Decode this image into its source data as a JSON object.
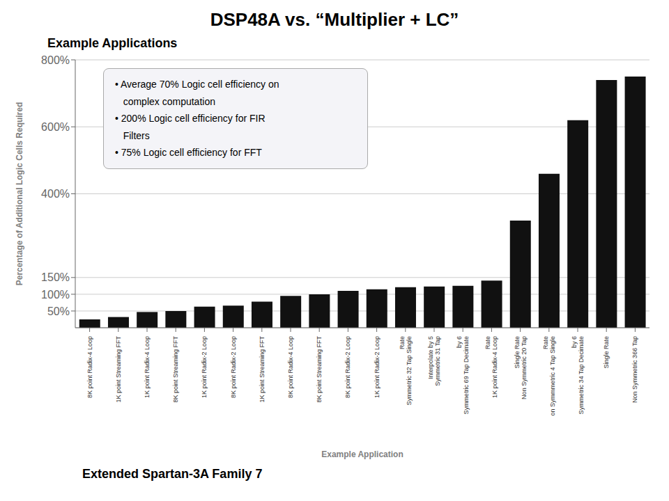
{
  "chart_data": {
    "type": "bar",
    "title": "DSP48A vs.  “Multiplier + LC”",
    "subtitle": "Example Applications",
    "footer": "Extended Spartan-3A Family   7",
    "x_label": "Example Application",
    "y_label": "Percentage  of Additional Logic Cells Required",
    "categories": [
      "8K point Radix-4 Loop",
      "1K point Streaming FFT",
      "1K point Radix-4 Loop",
      "8K point Streaming FFT",
      "1K point Radix-2 Loop",
      "8K point Radix-2 Loop",
      "1K point Streaming FFT",
      "8K point Radix-4 Loop",
      "8K point Streaming FFT",
      "8K point Radix-2 Loop",
      "1K point Radix-2 Loop",
      "Rate\nSymmetric 32 Tap Single",
      "Interpolate by 5\nSymmetric 31 Tap",
      "by 6\nSymmetric 69 Tap Decimate",
      "Rate\n1K point Radix-4 Loop",
      "Single Rate\nNon Symmetric 20 Tap",
      "Rate\non Symmmetric 4 Tap Single",
      "by 6\nSymmetric 34 Tap Decimate",
      "Single Rate",
      "Non Symmetric 366 Tap"
    ],
    "values": [
      25,
      32,
      47,
      50,
      63,
      66,
      78,
      95,
      100,
      110,
      115,
      121,
      123,
      125,
      141,
      320,
      460,
      620,
      740,
      750
    ],
    "color": "#111111",
    "ylim": [
      0,
      800
    ],
    "yticks": [
      {
        "value": 50,
        "label": "50%"
      },
      {
        "value": 100,
        "label": "100%"
      },
      {
        "value": 150,
        "label": "150%"
      },
      {
        "value": 400,
        "label": "400%"
      },
      {
        "value": 600,
        "label": "600%"
      },
      {
        "value": 800,
        "label": "800%"
      }
    ],
    "grid": true,
    "annotations": [
      "• Average 70% Logic cell efficiency on",
      "   complex computation",
      "• 200% Logic cell efficiency for FIR",
      "   Filters",
      "• 75% Logic cell efficiency for FFT"
    ]
  }
}
